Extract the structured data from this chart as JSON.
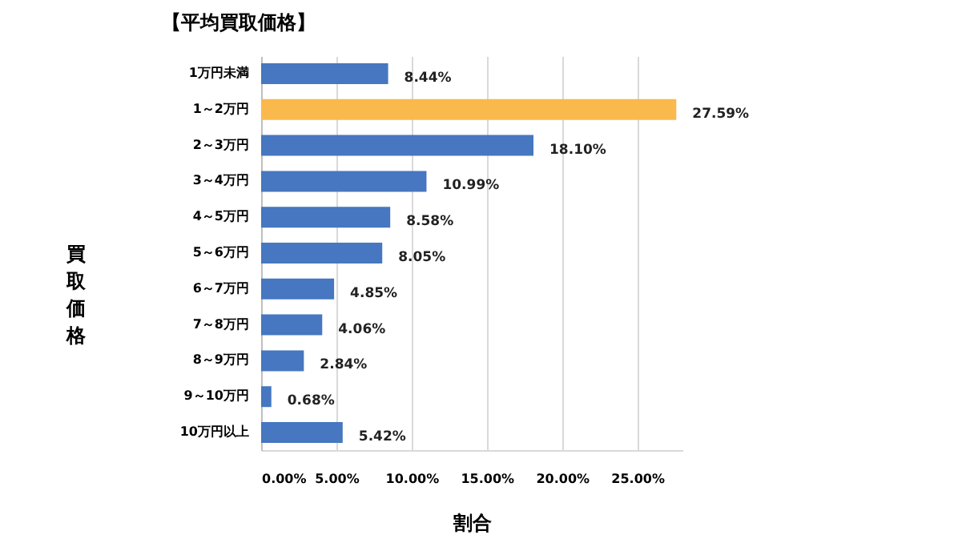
{
  "chart_data": {
    "type": "bar",
    "orientation": "horizontal",
    "title": "【平均買取価格】",
    "xlabel": "割合",
    "ylabel": "買取価格",
    "categories": [
      "1万円未満",
      "1～2万円",
      "2～3万円",
      "3～4万円",
      "4～5万円",
      "5～6万円",
      "6～7万円",
      "7～8万円",
      "8～9万円",
      "9～10万円",
      "10万円以上"
    ],
    "values": [
      8.44,
      27.59,
      18.1,
      10.99,
      8.58,
      8.05,
      4.85,
      4.06,
      2.84,
      0.68,
      5.42
    ],
    "value_labels": [
      "8.44%",
      "27.59%",
      "18.10%",
      "10.99%",
      "8.58%",
      "8.05%",
      "4.85%",
      "4.06%",
      "2.84%",
      "0.68%",
      "5.42%"
    ],
    "colors": [
      "#4677c0",
      "#f9b94c",
      "#4677c0",
      "#4677c0",
      "#4677c0",
      "#4677c0",
      "#4677c0",
      "#4677c0",
      "#4677c0",
      "#4677c0",
      "#4677c0"
    ],
    "xlim": [
      0,
      28
    ],
    "xticks": [
      {
        "value": 0,
        "label": "0.00%"
      },
      {
        "value": 5,
        "label": "5.00%"
      },
      {
        "value": 10,
        "label": "10.00%"
      },
      {
        "value": 15,
        "label": "15.00%"
      },
      {
        "value": 20,
        "label": "20.00%"
      },
      {
        "value": 25,
        "label": "25.00%"
      }
    ],
    "grid": "x"
  }
}
